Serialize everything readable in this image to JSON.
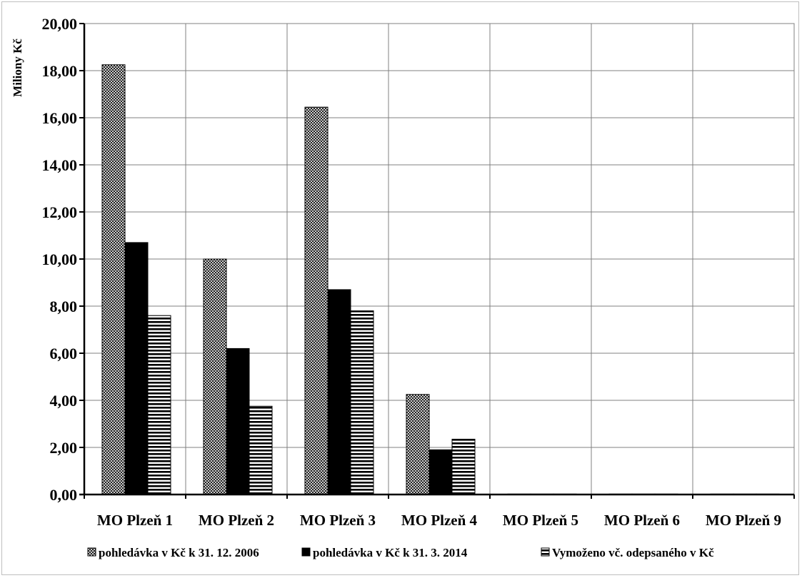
{
  "chart_data": {
    "type": "bar",
    "ylabel": "Miliony Kč",
    "ylim": [
      0,
      20
    ],
    "y_ticks": [
      "0,00",
      "2,00",
      "4,00",
      "6,00",
      "8,00",
      "10,00",
      "12,00",
      "14,00",
      "16,00",
      "18,00",
      "20,00"
    ],
    "grid": true,
    "legend_position": "bottom",
    "categories": [
      "MO Plzeň 1",
      "MO Plzeň 2",
      "MO Plzeň 3",
      "MO Plzeň 4",
      "MO Plzeň 5",
      "MO Plzeň 6",
      "MO Plzeň 9"
    ],
    "series": [
      {
        "name": "pohledávka v Kč  k 31. 12. 2006",
        "pattern": "crosshatch",
        "values": [
          18.25,
          10.0,
          16.45,
          4.25,
          0.02,
          0.02,
          0.02
        ]
      },
      {
        "name": "pohledávka v Kč  k 31. 3. 2014",
        "pattern": "solid-black",
        "values": [
          10.7,
          6.2,
          8.7,
          1.9,
          0.02,
          0.02,
          0.02
        ]
      },
      {
        "name": "Vymoženo vč. odepsaného v Kč",
        "pattern": "horizontal-stripes",
        "values": [
          7.6,
          3.75,
          7.8,
          2.35,
          0.02,
          0.02,
          0.02
        ]
      }
    ]
  }
}
